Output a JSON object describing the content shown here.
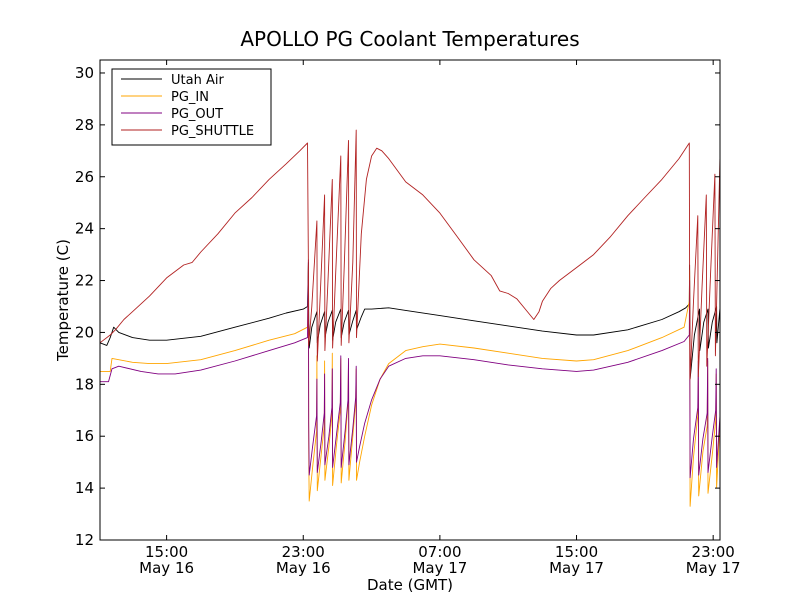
{
  "chart_data": {
    "type": "line",
    "title": "APOLLO PG Coolant Temperatures",
    "xlabel": "Date (GMT)",
    "ylabel": "Temperature (C)",
    "x_unit": "hours since May 16 15:00 GMT",
    "xlim": [
      -3.9,
      32.4
    ],
    "ylim": [
      12,
      30.5
    ],
    "yticks": [
      12,
      14,
      16,
      18,
      20,
      22,
      24,
      26,
      28,
      30
    ],
    "xticks": [
      {
        "x": 0,
        "time": "15:00",
        "date": "May 16"
      },
      {
        "x": 8,
        "time": "23:00",
        "date": "May 16"
      },
      {
        "x": 16,
        "time": "07:00",
        "date": "May 17"
      },
      {
        "x": 24,
        "time": "15:00",
        "date": "May 17"
      },
      {
        "x": 32,
        "time": "23:00",
        "date": "May 17"
      }
    ],
    "grid": false,
    "legend_position": "top-left",
    "series": [
      {
        "name": "Utah Air",
        "color": "#000000",
        "points": [
          [
            -3.9,
            19.6
          ],
          [
            -3.5,
            19.5
          ],
          [
            -3.3,
            19.8
          ],
          [
            -3.1,
            20.2
          ],
          [
            -2.8,
            20.0
          ],
          [
            -2,
            19.8
          ],
          [
            -1,
            19.7
          ],
          [
            0,
            19.7
          ],
          [
            2,
            19.85
          ],
          [
            4,
            20.2
          ],
          [
            6,
            20.55
          ],
          [
            7,
            20.75
          ],
          [
            8,
            20.9
          ],
          [
            8.25,
            21.0
          ],
          [
            8.3,
            22.7
          ],
          [
            8.32,
            20.5
          ],
          [
            8.35,
            19.4
          ],
          [
            8.5,
            20.2
          ],
          [
            8.8,
            20.8
          ],
          [
            8.82,
            19.6
          ],
          [
            9.0,
            20.3
          ],
          [
            9.25,
            20.8
          ],
          [
            9.27,
            19.8
          ],
          [
            9.45,
            20.4
          ],
          [
            9.7,
            20.85
          ],
          [
            9.72,
            19.7
          ],
          [
            9.9,
            20.4
          ],
          [
            10.2,
            20.9
          ],
          [
            10.22,
            19.8
          ],
          [
            10.4,
            20.4
          ],
          [
            10.65,
            20.85
          ],
          [
            10.67,
            19.9
          ],
          [
            10.9,
            20.45
          ],
          [
            11.1,
            20.85
          ],
          [
            11.12,
            20.1
          ],
          [
            11.4,
            20.6
          ],
          [
            11.6,
            20.9
          ],
          [
            12.0,
            20.9
          ],
          [
            13,
            20.95
          ],
          [
            14,
            20.85
          ],
          [
            16,
            20.65
          ],
          [
            18,
            20.45
          ],
          [
            20,
            20.25
          ],
          [
            22,
            20.05
          ],
          [
            24,
            19.9
          ],
          [
            25,
            19.9
          ],
          [
            27,
            20.1
          ],
          [
            29,
            20.5
          ],
          [
            30,
            20.8
          ],
          [
            30.4,
            20.95
          ],
          [
            30.6,
            21.1
          ],
          [
            30.62,
            22.6
          ],
          [
            30.65,
            18.2
          ],
          [
            30.9,
            19.9
          ],
          [
            31.2,
            20.9
          ],
          [
            31.22,
            19.3
          ],
          [
            31.45,
            20.4
          ],
          [
            31.7,
            20.9
          ],
          [
            31.72,
            19.4
          ],
          [
            31.95,
            20.4
          ],
          [
            32.2,
            21.0
          ],
          [
            32.22,
            19.6
          ],
          [
            32.4,
            20.95
          ]
        ]
      },
      {
        "name": "PG_IN",
        "color": "#ffa500",
        "points": [
          [
            -3.9,
            18.5
          ],
          [
            -3.3,
            18.5
          ],
          [
            -3.2,
            19.0
          ],
          [
            -2,
            18.85
          ],
          [
            -1,
            18.8
          ],
          [
            0,
            18.8
          ],
          [
            2,
            18.95
          ],
          [
            4,
            19.3
          ],
          [
            6,
            19.7
          ],
          [
            7.5,
            19.95
          ],
          [
            8.25,
            20.2
          ],
          [
            8.3,
            22.6
          ],
          [
            8.32,
            15.5
          ],
          [
            8.35,
            13.5
          ],
          [
            8.55,
            14.8
          ],
          [
            8.78,
            16.2
          ],
          [
            8.8,
            19.1
          ],
          [
            8.82,
            13.9
          ],
          [
            9.05,
            15.3
          ],
          [
            9.23,
            16.4
          ],
          [
            9.25,
            18.9
          ],
          [
            9.27,
            14.3
          ],
          [
            9.5,
            15.6
          ],
          [
            9.68,
            16.8
          ],
          [
            9.7,
            19.2
          ],
          [
            9.72,
            14.1
          ],
          [
            9.95,
            15.7
          ],
          [
            10.17,
            17.0
          ],
          [
            10.2,
            19.0
          ],
          [
            10.22,
            14.2
          ],
          [
            10.45,
            15.8
          ],
          [
            10.62,
            17.3
          ],
          [
            10.65,
            18.8
          ],
          [
            10.67,
            14.3
          ],
          [
            10.9,
            16.0
          ],
          [
            11.07,
            17.3
          ],
          [
            11.1,
            18.6
          ],
          [
            11.12,
            14.3
          ],
          [
            11.3,
            15.0
          ],
          [
            11.6,
            16.0
          ],
          [
            12,
            17.2
          ],
          [
            12.5,
            18.2
          ],
          [
            13,
            18.8
          ],
          [
            14,
            19.3
          ],
          [
            15,
            19.45
          ],
          [
            16,
            19.55
          ],
          [
            18,
            19.4
          ],
          [
            20,
            19.2
          ],
          [
            22,
            19.0
          ],
          [
            24,
            18.9
          ],
          [
            25,
            18.95
          ],
          [
            27,
            19.3
          ],
          [
            29,
            19.8
          ],
          [
            30.3,
            20.2
          ],
          [
            30.6,
            21.2
          ],
          [
            30.62,
            22.4
          ],
          [
            30.65,
            13.3
          ],
          [
            30.85,
            15.2
          ],
          [
            31.1,
            16.8
          ],
          [
            31.13,
            18.3
          ],
          [
            31.15,
            13.7
          ],
          [
            31.4,
            15.4
          ],
          [
            31.65,
            16.4
          ],
          [
            31.68,
            18.9
          ],
          [
            31.7,
            13.8
          ],
          [
            31.95,
            15.3
          ],
          [
            32.15,
            16.6
          ],
          [
            32.18,
            18.4
          ],
          [
            32.2,
            14.0
          ],
          [
            32.4,
            16.6
          ]
        ]
      },
      {
        "name": "PG_OUT",
        "color": "#800080",
        "points": [
          [
            -3.9,
            18.1
          ],
          [
            -3.4,
            18.1
          ],
          [
            -3.2,
            18.6
          ],
          [
            -2.8,
            18.7
          ],
          [
            -1.5,
            18.5
          ],
          [
            -0.5,
            18.4
          ],
          [
            0.5,
            18.4
          ],
          [
            2,
            18.55
          ],
          [
            4,
            18.9
          ],
          [
            6,
            19.3
          ],
          [
            7.5,
            19.6
          ],
          [
            8.25,
            19.8
          ],
          [
            8.3,
            22.8
          ],
          [
            8.32,
            16.5
          ],
          [
            8.35,
            14.5
          ],
          [
            8.55,
            15.6
          ],
          [
            8.78,
            16.8
          ],
          [
            8.8,
            18.2
          ],
          [
            8.82,
            14.6
          ],
          [
            9.05,
            15.8
          ],
          [
            9.23,
            16.9
          ],
          [
            9.25,
            18.4
          ],
          [
            9.27,
            14.9
          ],
          [
            9.5,
            16.0
          ],
          [
            9.68,
            17.1
          ],
          [
            9.7,
            18.6
          ],
          [
            9.72,
            14.8
          ],
          [
            9.95,
            16.1
          ],
          [
            10.17,
            17.3
          ],
          [
            10.2,
            19.1
          ],
          [
            10.22,
            14.8
          ],
          [
            10.45,
            16.2
          ],
          [
            10.62,
            17.4
          ],
          [
            10.65,
            19.0
          ],
          [
            10.67,
            14.9
          ],
          [
            10.9,
            16.3
          ],
          [
            11.07,
            17.5
          ],
          [
            11.1,
            18.7
          ],
          [
            11.12,
            15.0
          ],
          [
            11.3,
            15.6
          ],
          [
            11.6,
            16.5
          ],
          [
            12,
            17.4
          ],
          [
            12.5,
            18.2
          ],
          [
            13,
            18.7
          ],
          [
            14,
            19.0
          ],
          [
            15,
            19.1
          ],
          [
            16,
            19.1
          ],
          [
            18,
            18.95
          ],
          [
            20,
            18.75
          ],
          [
            22,
            18.6
          ],
          [
            24,
            18.5
          ],
          [
            25,
            18.55
          ],
          [
            27,
            18.85
          ],
          [
            29,
            19.3
          ],
          [
            30.3,
            19.65
          ],
          [
            30.6,
            19.9
          ],
          [
            30.62,
            22.0
          ],
          [
            30.65,
            14.4
          ],
          [
            30.85,
            15.9
          ],
          [
            31.1,
            17.1
          ],
          [
            31.13,
            18.9
          ],
          [
            31.15,
            14.5
          ],
          [
            31.4,
            15.9
          ],
          [
            31.65,
            16.9
          ],
          [
            31.68,
            19.0
          ],
          [
            31.7,
            14.6
          ],
          [
            31.95,
            16.0
          ],
          [
            32.15,
            17.0
          ],
          [
            32.18,
            18.6
          ],
          [
            32.2,
            14.8
          ],
          [
            32.4,
            16.8
          ]
        ]
      },
      {
        "name": "PG_SHUTTLE",
        "color": "#b22222",
        "points": [
          [
            -3.9,
            19.6
          ],
          [
            -3.3,
            19.9
          ],
          [
            -3.0,
            20.1
          ],
          [
            -2.5,
            20.5
          ],
          [
            -2,
            20.8
          ],
          [
            -1,
            21.4
          ],
          [
            0,
            22.1
          ],
          [
            1,
            22.6
          ],
          [
            1.5,
            22.7
          ],
          [
            2,
            23.1
          ],
          [
            3,
            23.8
          ],
          [
            4,
            24.6
          ],
          [
            5,
            25.2
          ],
          [
            6,
            25.9
          ],
          [
            7,
            26.5
          ],
          [
            7.8,
            27.0
          ],
          [
            8.25,
            27.3
          ],
          [
            8.3,
            22.6
          ],
          [
            8.32,
            19.5
          ],
          [
            8.5,
            21.0
          ],
          [
            8.8,
            24.3
          ],
          [
            8.82,
            18.9
          ],
          [
            9.0,
            21.5
          ],
          [
            9.25,
            25.3
          ],
          [
            9.27,
            19.3
          ],
          [
            9.45,
            22.0
          ],
          [
            9.7,
            25.9
          ],
          [
            9.72,
            19.4
          ],
          [
            9.9,
            22.3
          ],
          [
            10.2,
            26.8
          ],
          [
            10.22,
            19.5
          ],
          [
            10.4,
            22.5
          ],
          [
            10.65,
            27.4
          ],
          [
            10.67,
            19.6
          ],
          [
            10.9,
            22.7
          ],
          [
            11.1,
            27.8
          ],
          [
            11.12,
            19.8
          ],
          [
            11.4,
            23.8
          ],
          [
            11.7,
            25.9
          ],
          [
            12,
            26.8
          ],
          [
            12.3,
            27.1
          ],
          [
            12.6,
            27.0
          ],
          [
            13,
            26.7
          ],
          [
            14,
            25.8
          ],
          [
            15,
            25.3
          ],
          [
            16,
            24.6
          ],
          [
            17,
            23.7
          ],
          [
            18,
            22.8
          ],
          [
            19,
            22.2
          ],
          [
            19.5,
            21.6
          ],
          [
            20,
            21.5
          ],
          [
            20.5,
            21.3
          ],
          [
            21,
            20.9
          ],
          [
            21.5,
            20.5
          ],
          [
            21.8,
            20.8
          ],
          [
            22,
            21.2
          ],
          [
            22.5,
            21.7
          ],
          [
            23,
            22.0
          ],
          [
            24,
            22.5
          ],
          [
            25,
            23.0
          ],
          [
            26,
            23.7
          ],
          [
            27,
            24.5
          ],
          [
            28,
            25.2
          ],
          [
            29,
            25.9
          ],
          [
            30,
            26.7
          ],
          [
            30.6,
            27.3
          ],
          [
            30.62,
            22.4
          ],
          [
            30.65,
            18.2
          ],
          [
            30.85,
            21.2
          ],
          [
            31.1,
            24.5
          ],
          [
            31.13,
            18.3
          ],
          [
            31.35,
            21.8
          ],
          [
            31.6,
            25.3
          ],
          [
            31.63,
            18.7
          ],
          [
            31.85,
            22.3
          ],
          [
            32.1,
            26.1
          ],
          [
            32.13,
            19.1
          ],
          [
            32.4,
            26.8
          ]
        ]
      }
    ]
  }
}
